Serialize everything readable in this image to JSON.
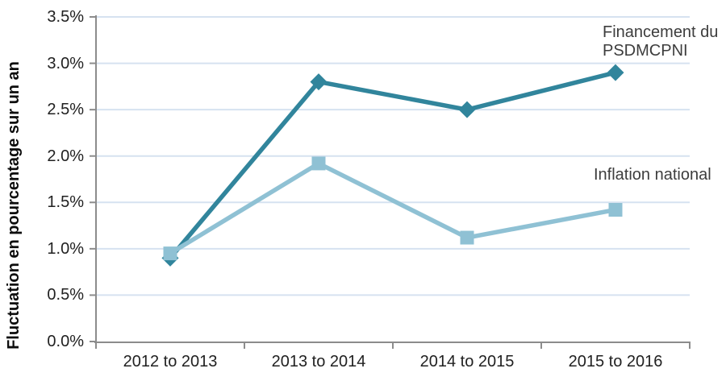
{
  "colors": {
    "background": "#ffffff",
    "grid": "#D6E2F0",
    "axis": "#8C8C8C",
    "tick_text": "#212121",
    "annotation_text": "#3D3D3D",
    "series_financement": "#31859C",
    "series_inflation": "#8FC1D4"
  },
  "chart_data": {
    "type": "line",
    "title": "",
    "xlabel": "",
    "ylabel": "Fluctuation en pourcentage sur un an",
    "ylim": [
      0,
      3.5
    ],
    "ytick_step": 0.5,
    "ytick_labels": [
      "0.0%",
      "0.5%",
      "1.0%",
      "1.5%",
      "2.0%",
      "2.5%",
      "3.0%",
      "3.5%"
    ],
    "grid": "horizontal",
    "legend_position": "inline-annotations",
    "categories": [
      "2012 to 2013",
      "2013 to 2014",
      "2014 to 2015",
      "2015 to 2016"
    ],
    "series": [
      {
        "name": "Financement du PSDMCPNI",
        "marker": "diamond",
        "color": "#31859C",
        "values": [
          0.9,
          2.8,
          2.5,
          2.9
        ]
      },
      {
        "name": "Inflation national",
        "marker": "square",
        "color": "#8FC1D4",
        "values": [
          0.95,
          1.92,
          1.12,
          1.42
        ]
      }
    ],
    "annotations": [
      {
        "text": "Financement du\nPSDMCPNI",
        "series": "Financement du PSDMCPNI"
      },
      {
        "text": "Inflation national",
        "series": "Inflation national"
      }
    ]
  }
}
